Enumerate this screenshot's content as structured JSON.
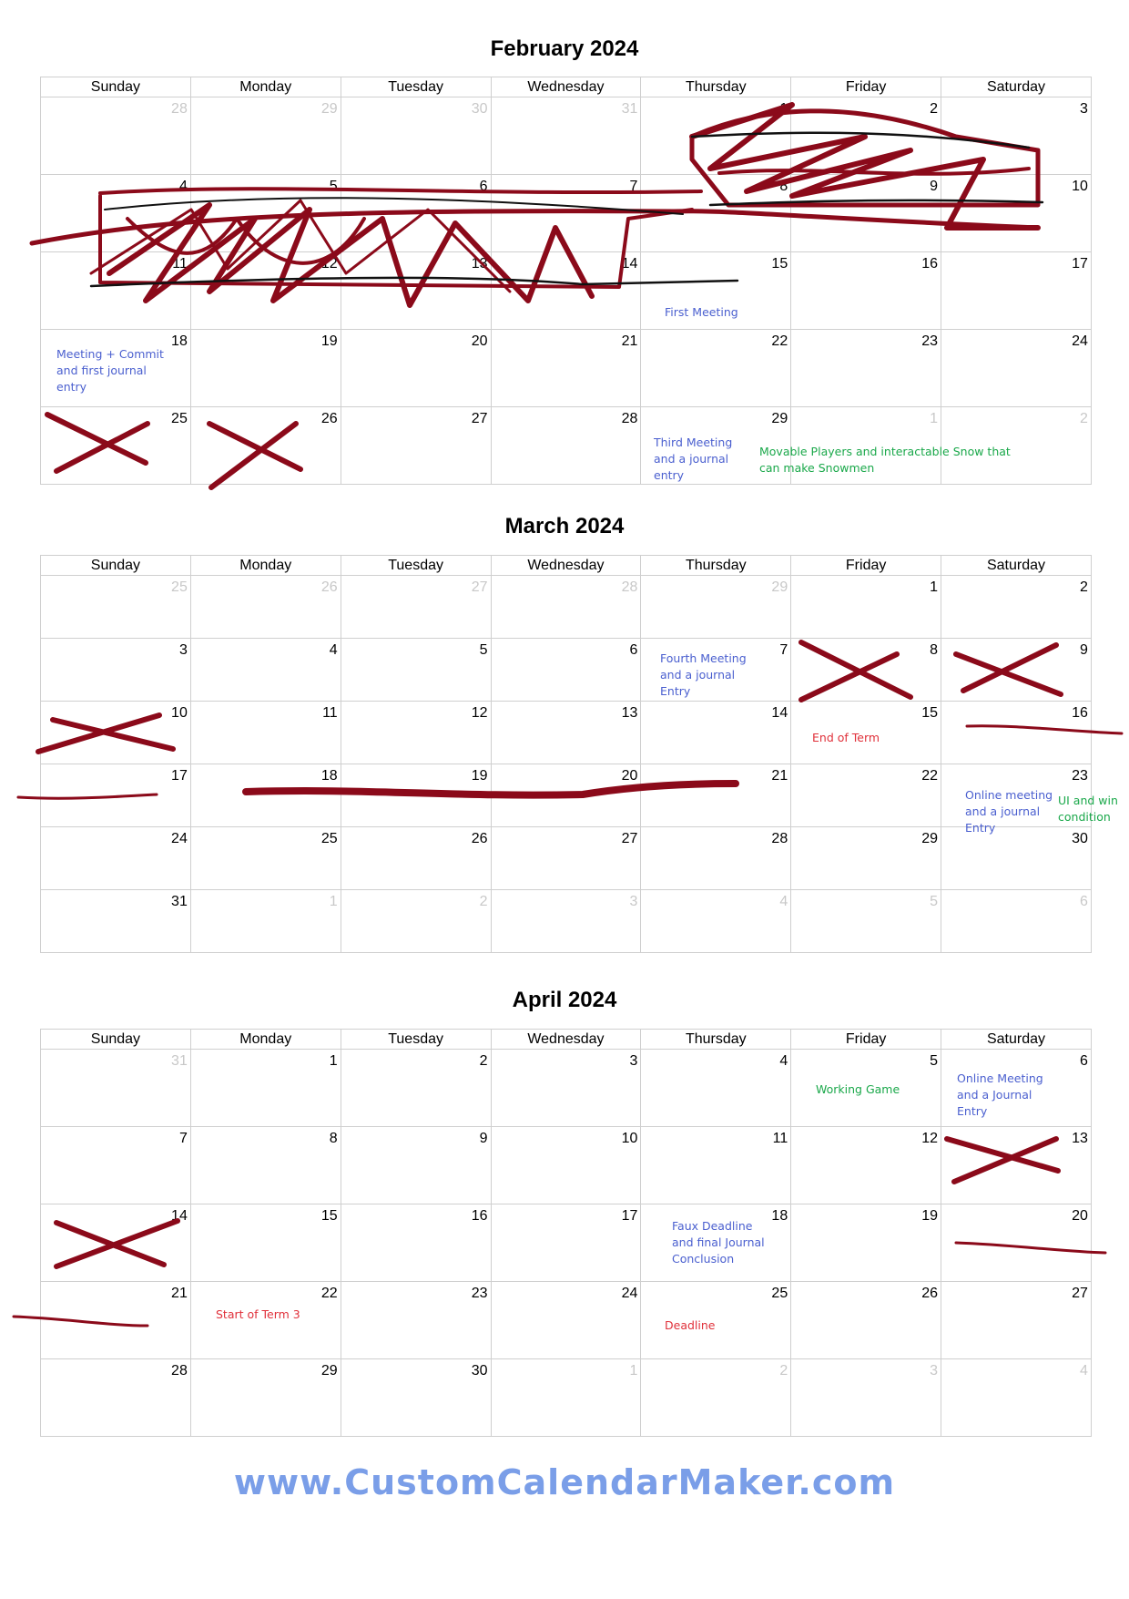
{
  "day_headers": [
    "Sunday",
    "Monday",
    "Tuesday",
    "Wednesday",
    "Thursday",
    "Friday",
    "Saturday"
  ],
  "months": [
    {
      "title": "February 2024",
      "weeks": [
        [
          {
            "n": "28",
            "o": true
          },
          {
            "n": "29",
            "o": true
          },
          {
            "n": "30",
            "o": true
          },
          {
            "n": "31",
            "o": true
          },
          {
            "n": "1"
          },
          {
            "n": "2"
          },
          {
            "n": "3"
          }
        ],
        [
          {
            "n": "4"
          },
          {
            "n": "5"
          },
          {
            "n": "6"
          },
          {
            "n": "7"
          },
          {
            "n": "8"
          },
          {
            "n": "9"
          },
          {
            "n": "10"
          }
        ],
        [
          {
            "n": "11"
          },
          {
            "n": "12"
          },
          {
            "n": "13"
          },
          {
            "n": "14"
          },
          {
            "n": "15"
          },
          {
            "n": "16"
          },
          {
            "n": "17"
          }
        ],
        [
          {
            "n": "18"
          },
          {
            "n": "19"
          },
          {
            "n": "20"
          },
          {
            "n": "21"
          },
          {
            "n": "22"
          },
          {
            "n": "23"
          },
          {
            "n": "24"
          }
        ],
        [
          {
            "n": "25"
          },
          {
            "n": "26"
          },
          {
            "n": "27"
          },
          {
            "n": "28"
          },
          {
            "n": "29"
          },
          {
            "n": "1",
            "o": true
          },
          {
            "n": "2",
            "o": true
          }
        ]
      ],
      "events": [
        {
          "text": "First Meeting",
          "color": "blue"
        },
        {
          "text": "Meeting + Commit and first journal entry",
          "color": "blue"
        },
        {
          "text": "Third Meeting and a journal entry",
          "color": "blue"
        },
        {
          "text": "Movable Players and interactable Snow that can make Snowmen",
          "color": "green"
        }
      ]
    },
    {
      "title": "March 2024",
      "weeks": [
        [
          {
            "n": "25",
            "o": true
          },
          {
            "n": "26",
            "o": true
          },
          {
            "n": "27",
            "o": true
          },
          {
            "n": "28",
            "o": true
          },
          {
            "n": "29",
            "o": true
          },
          {
            "n": "1"
          },
          {
            "n": "2"
          }
        ],
        [
          {
            "n": "3"
          },
          {
            "n": "4"
          },
          {
            "n": "5"
          },
          {
            "n": "6"
          },
          {
            "n": "7"
          },
          {
            "n": "8"
          },
          {
            "n": "9"
          }
        ],
        [
          {
            "n": "10"
          },
          {
            "n": "11"
          },
          {
            "n": "12"
          },
          {
            "n": "13"
          },
          {
            "n": "14"
          },
          {
            "n": "15"
          },
          {
            "n": "16"
          }
        ],
        [
          {
            "n": "17"
          },
          {
            "n": "18"
          },
          {
            "n": "19"
          },
          {
            "n": "20"
          },
          {
            "n": "21"
          },
          {
            "n": "22"
          },
          {
            "n": "23"
          }
        ],
        [
          {
            "n": "24"
          },
          {
            "n": "25"
          },
          {
            "n": "26"
          },
          {
            "n": "27"
          },
          {
            "n": "28"
          },
          {
            "n": "29"
          },
          {
            "n": "30"
          }
        ],
        [
          {
            "n": "31"
          },
          {
            "n": "1",
            "o": true
          },
          {
            "n": "2",
            "o": true
          },
          {
            "n": "3",
            "o": true
          },
          {
            "n": "4",
            "o": true
          },
          {
            "n": "5",
            "o": true
          },
          {
            "n": "6",
            "o": true
          }
        ]
      ],
      "events": [
        {
          "text": "Fourth Meeting and a journal Entry",
          "color": "blue"
        },
        {
          "text": "End of Term",
          "color": "red"
        },
        {
          "text": "Online meeting and a journal Entry",
          "color": "blue"
        },
        {
          "text": "UI and win condition",
          "color": "green"
        }
      ]
    },
    {
      "title": "April 2024",
      "weeks": [
        [
          {
            "n": "31",
            "o": true
          },
          {
            "n": "1"
          },
          {
            "n": "2"
          },
          {
            "n": "3"
          },
          {
            "n": "4"
          },
          {
            "n": "5"
          },
          {
            "n": "6"
          }
        ],
        [
          {
            "n": "7"
          },
          {
            "n": "8"
          },
          {
            "n": "9"
          },
          {
            "n": "10"
          },
          {
            "n": "11"
          },
          {
            "n": "12"
          },
          {
            "n": "13"
          }
        ],
        [
          {
            "n": "14"
          },
          {
            "n": "15"
          },
          {
            "n": "16"
          },
          {
            "n": "17"
          },
          {
            "n": "18"
          },
          {
            "n": "19"
          },
          {
            "n": "20"
          }
        ],
        [
          {
            "n": "21"
          },
          {
            "n": "22"
          },
          {
            "n": "23"
          },
          {
            "n": "24"
          },
          {
            "n": "25"
          },
          {
            "n": "26"
          },
          {
            "n": "27"
          }
        ],
        [
          {
            "n": "28"
          },
          {
            "n": "29"
          },
          {
            "n": "30"
          },
          {
            "n": "1",
            "o": true
          },
          {
            "n": "2",
            "o": true
          },
          {
            "n": "3",
            "o": true
          },
          {
            "n": "4",
            "o": true
          }
        ]
      ],
      "events": [
        {
          "text": "Working Game",
          "color": "green"
        },
        {
          "text": "Online Meeting and a Journal Entry",
          "color": "blue"
        },
        {
          "text": "Faux Deadline and final Journal Conclusion",
          "color": "blue"
        },
        {
          "text": "Start of Term 3",
          "color": "red"
        },
        {
          "text": "Deadline",
          "color": "red"
        }
      ]
    }
  ],
  "footer": "www.CustomCalendarMaker.com",
  "colors": {
    "ink": "#8b0a1a",
    "event_blue": "#4a5fcf",
    "event_green": "#1aa84a",
    "event_red": "#e0303a",
    "footer": "#7a9ee8"
  }
}
